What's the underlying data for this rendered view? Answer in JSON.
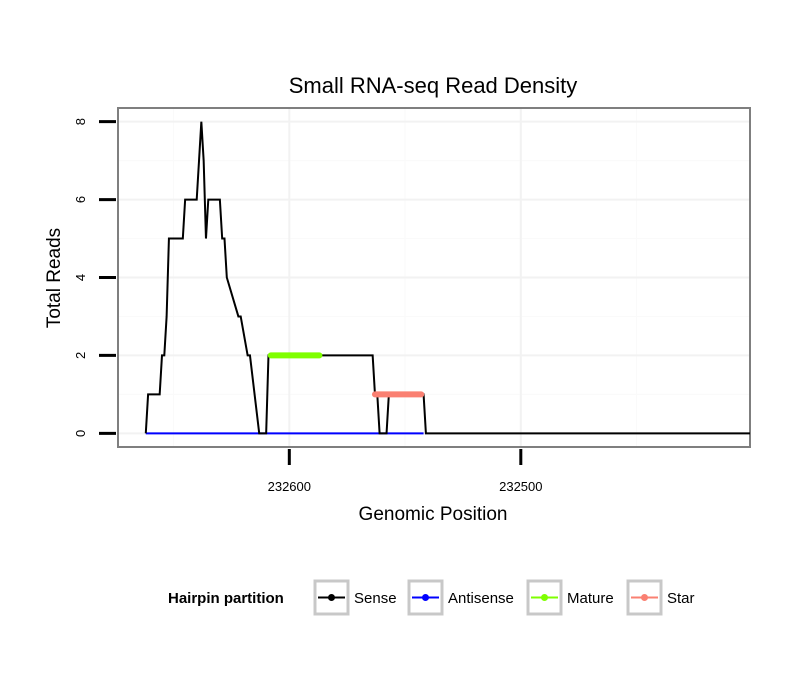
{
  "chart_data": {
    "type": "line",
    "title": "Small RNA-seq Read Density",
    "xlabel": "Genomic Position",
    "ylabel": "Total Reads",
    "x_reversed": true,
    "xlim": [
      232674,
      232401
    ],
    "ylim": [
      -0.35,
      8.35
    ],
    "x_ticks": [
      232600,
      232500
    ],
    "x_tick_labels": [
      "232600",
      "232500"
    ],
    "y_ticks": [
      0,
      2,
      4,
      6,
      8
    ],
    "y_tick_labels": [
      "0",
      "2",
      "4",
      "6",
      "8"
    ],
    "grid": true,
    "legend": {
      "title": "Hairpin partition",
      "position": "bottom",
      "entries": [
        {
          "name": "Sense",
          "color": "#000000"
        },
        {
          "name": "Antisense",
          "color": "#0000ff"
        },
        {
          "name": "Mature",
          "color": "#7fff00"
        },
        {
          "name": "Star",
          "color": "#fa8072"
        }
      ]
    },
    "series": [
      {
        "name": "Sense",
        "color": "#000000",
        "x": [
          232662,
          232661,
          232656,
          232655,
          232654,
          232653,
          232652,
          232651,
          232646,
          232645,
          232640,
          232639,
          232638,
          232637,
          232636,
          232635,
          232630,
          232629,
          232628,
          232627,
          232622,
          232621,
          232618,
          232617,
          232613,
          232612,
          232610,
          232609,
          232608,
          232564,
          232563,
          232562,
          232561,
          232560,
          232558,
          232557,
          232542,
          232541,
          232401
        ],
        "y": [
          0,
          1,
          1,
          2,
          2,
          3,
          5,
          5,
          5,
          6,
          6,
          7,
          8,
          7,
          5,
          6,
          6,
          5,
          5,
          4,
          3,
          3,
          2,
          2,
          0,
          0,
          0,
          2,
          2,
          2,
          1,
          1,
          0,
          0,
          0,
          1,
          1,
          0,
          0
        ]
      },
      {
        "name": "Antisense",
        "color": "#0000ff",
        "x": [
          232662,
          232542
        ],
        "y": [
          0,
          0
        ]
      },
      {
        "name": "Mature",
        "color": "#7fff00",
        "x": [
          232608,
          232587
        ],
        "y": [
          2,
          2
        ]
      },
      {
        "name": "Star",
        "color": "#fa8072",
        "x": [
          232563,
          232543
        ],
        "y": [
          1,
          1
        ]
      }
    ]
  }
}
